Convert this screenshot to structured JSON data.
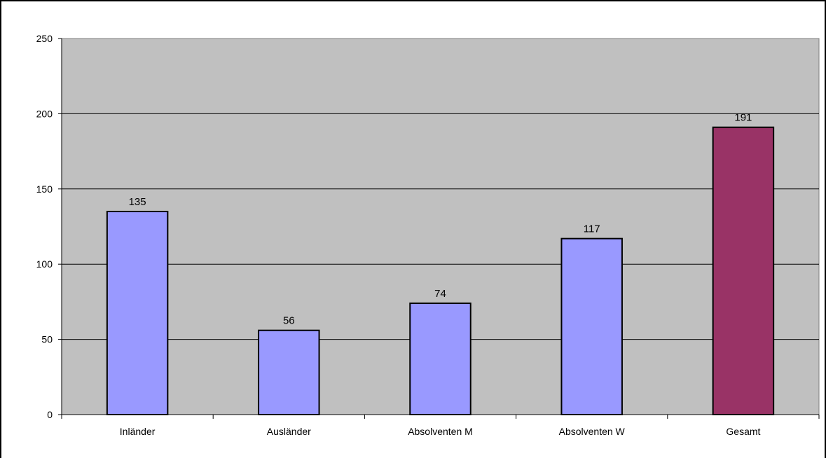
{
  "chart_data": {
    "type": "bar",
    "categories": [
      "Inländer",
      "Ausländer",
      "Absolventen M",
      "Absolventen W",
      "Gesamt"
    ],
    "values": [
      135,
      56,
      74,
      117,
      191
    ],
    "data_labels": [
      "135",
      "56",
      "74",
      "117",
      "191"
    ],
    "ylim": [
      0,
      250
    ],
    "y_ticks": [
      0,
      50,
      100,
      150,
      200,
      250
    ],
    "y_tick_labels": [
      "0",
      "50",
      "100",
      "150",
      "200",
      "250"
    ],
    "grid": true,
    "legend": "none",
    "colors": {
      "bar": "#9999ff",
      "highlight_bar": "#993366",
      "plot_background": "#c0c0c0",
      "gridline": "#000000"
    },
    "highlight_index": 4
  }
}
